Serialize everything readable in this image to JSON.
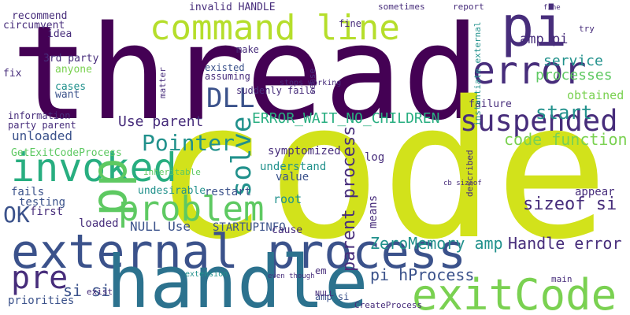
{
  "words": [
    "thread",
    "code",
    "external process",
    "handle",
    "exitCode",
    "command line",
    "pi",
    "error",
    "invoked",
    "problem",
    "suspended",
    "DLL",
    "solve",
    "pp",
    "Pointer",
    "OK",
    "pre",
    "sizeof si",
    "start",
    "code function",
    "service",
    "processes",
    "amp pi",
    "obtained",
    "ERROR_WAIT_NO_CHILDREN",
    "Use parent",
    "ZeroMemory amp",
    "Handle error",
    "parent process",
    "pi hProcess",
    "si si",
    "root",
    "NULL Use",
    "STARTUPINFO",
    "unloaded",
    "GetExitCodeProcess",
    "symptomized",
    "understand",
    "value",
    "restart",
    "undesirable",
    "testing",
    "fails",
    "first",
    "loaded",
    "cause",
    "means",
    "log",
    "appear",
    "priorities",
    "3rd party",
    "anyone",
    "fix",
    "want",
    "cases",
    "idea",
    "recommend",
    "circumvent",
    "invalid HANDLE",
    "sometimes",
    "fine",
    "report",
    "make",
    "existed",
    "assuming",
    "suddenly fails",
    "stops working",
    "sense",
    "failure",
    "CreateProcess",
    "amp si",
    "exist",
    "main",
    "extension",
    "even though",
    "information",
    "party parent",
    "em",
    "NULL",
    "matter",
    "inheritable",
    "described",
    "instantiate external",
    "cb sizeof",
    "try",
    "fine"
  ]
}
